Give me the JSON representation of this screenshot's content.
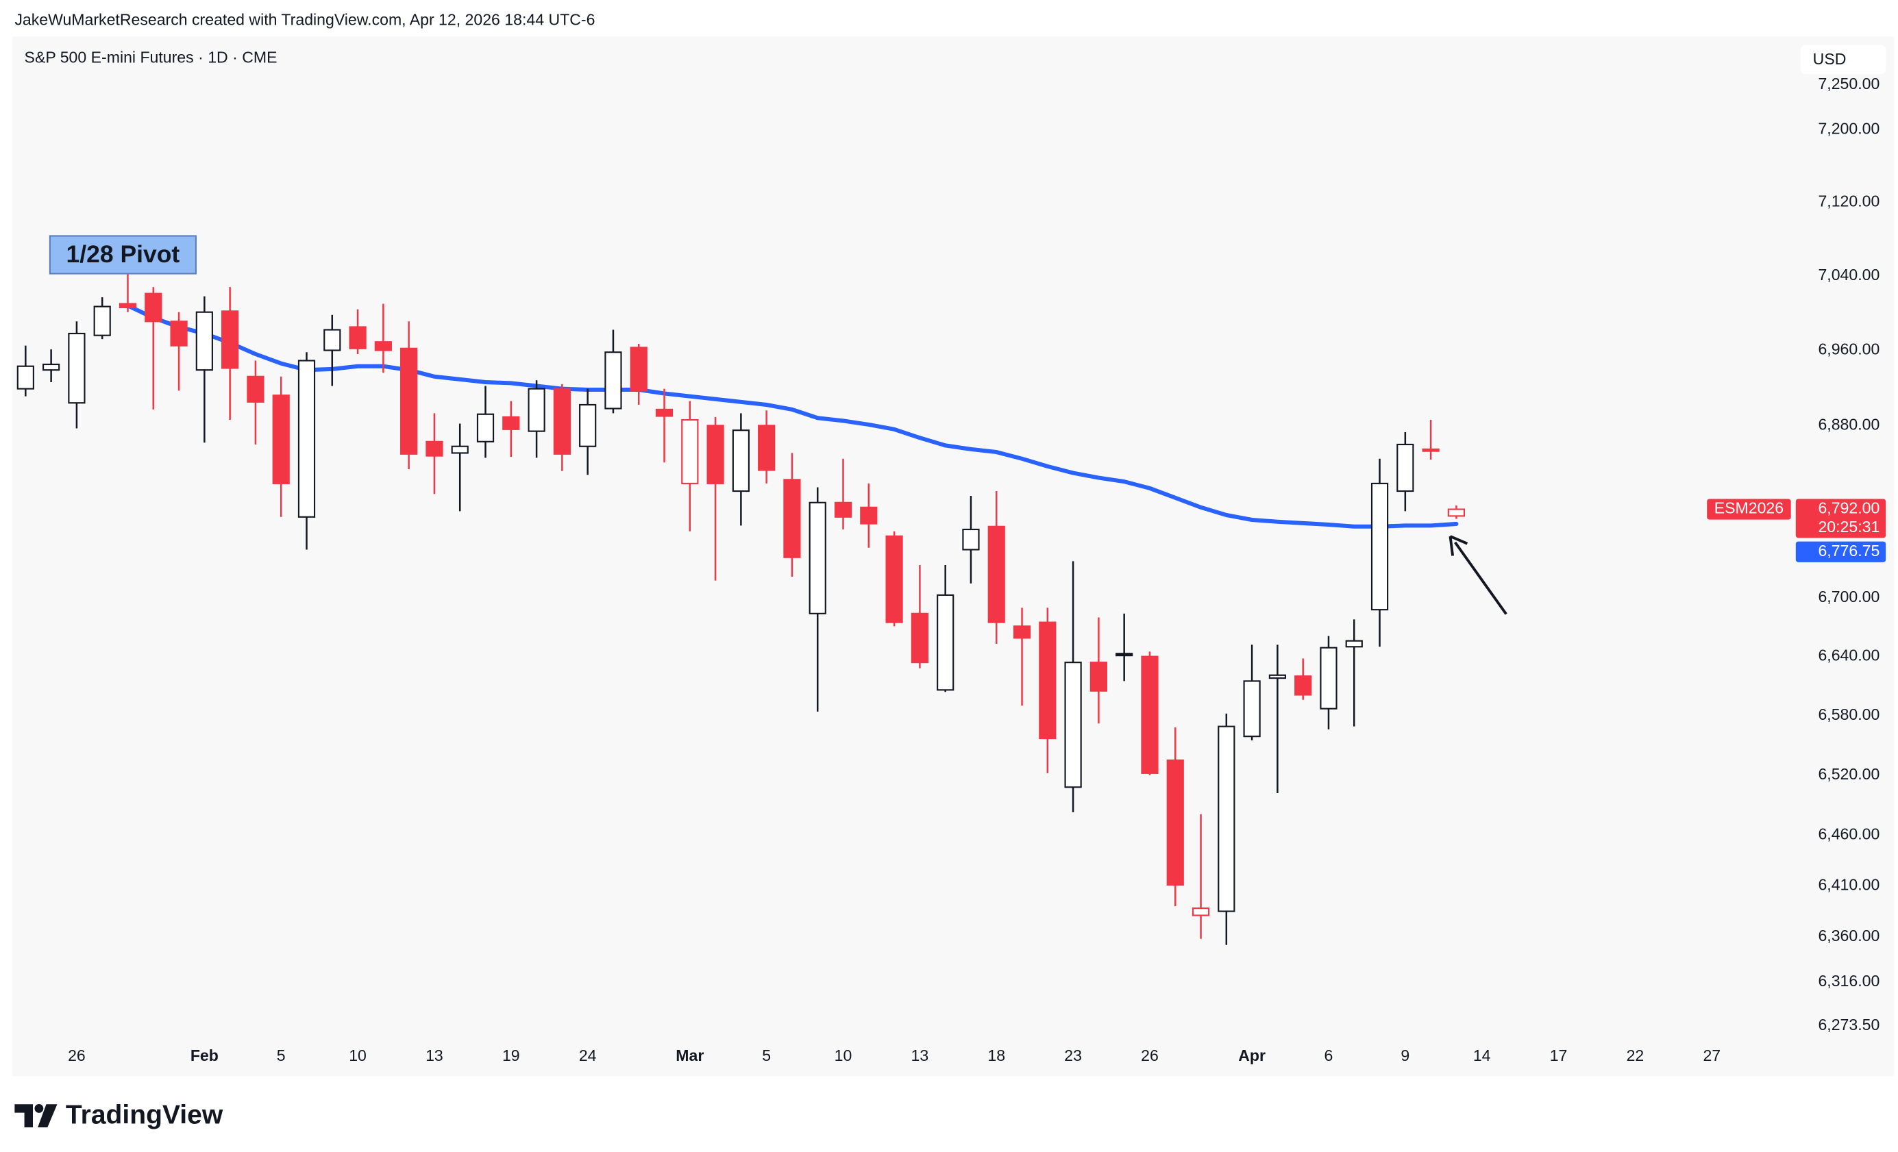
{
  "chart_data": {
    "type": "candlestick",
    "header": "JakeWuMarketResearch created with TradingView.com, Apr 12, 2026 18:44 UTC-6",
    "title": "S&P 500 E-mini Futures · 1D · CME",
    "currency": "USD",
    "brand": "TradingView",
    "log_scale": true,
    "grid": false,
    "up_color": "#131722",
    "down_color": "#f23645",
    "categories": [
      null,
      null,
      "26",
      null,
      null,
      null,
      null,
      "Feb",
      null,
      null,
      "5",
      null,
      null,
      "10",
      null,
      null,
      "13",
      null,
      null,
      "19",
      null,
      null,
      "24",
      null,
      null,
      null,
      "Mar",
      null,
      null,
      "5",
      null,
      null,
      "10",
      null,
      null,
      "13",
      null,
      null,
      "18",
      null,
      null,
      "23",
      null,
      null,
      "26",
      null,
      null,
      null,
      "Apr",
      null,
      null,
      "6",
      null,
      null,
      "9",
      null,
      null,
      "14",
      null,
      null,
      "17",
      null,
      null,
      "22",
      null,
      null,
      "27",
      null,
      null
    ],
    "open": [
      6919,
      6939,
      6904,
      6976,
      7010,
      7021,
      6991,
      6939,
      7002,
      6932,
      6912,
      6784,
      6960,
      6985,
      6969,
      6962,
      6863,
      6851,
      6863,
      6889,
      6874,
      6919,
      6858,
      6898,
      6963,
      6897,
      6819,
      6880,
      6811,
      6880,
      6823,
      6684,
      6799,
      6794,
      6764,
      6684,
      6606,
      6750,
      6774,
      6671,
      6675,
      6508,
      6634,
      6643,
      6640,
      6535,
      6381,
      6385,
      6559,
      6618,
      6620,
      6587,
      6650,
      6688,
      6811,
      6855,
      6785,
      null,
      null,
      null,
      null,
      null,
      null,
      null,
      null,
      null,
      null,
      null,
      null
    ],
    "high": [
      6965,
      6961,
      6991,
      7017,
      7043,
      7028,
      7001,
      7018,
      7028,
      6949,
      6932,
      6958,
      6998,
      7004,
      7010,
      6991,
      6893,
      6882,
      6922,
      6906,
      6928,
      6924,
      6919,
      6982,
      6967,
      6919,
      6906,
      6889,
      6893,
      6896,
      6851,
      6815,
      6845,
      6819,
      6769,
      6734,
      6734,
      6806,
      6811,
      6690,
      6690,
      6738,
      6680,
      6684,
      6645,
      6568,
      6481,
      6582,
      6652,
      6652,
      6638,
      6661,
      6678,
      6845,
      6873,
      6886,
      6796,
      null,
      null,
      null,
      null,
      null,
      null,
      null,
      null,
      null,
      null,
      null,
      null
    ],
    "low": [
      6911,
      6926,
      6877,
      6972,
      7001,
      6897,
      6917,
      6862,
      6886,
      6860,
      6784,
      6750,
      6922,
      6956,
      6936,
      6834,
      6808,
      6790,
      6846,
      6847,
      6846,
      6832,
      6828,
      6893,
      6902,
      6841,
      6769,
      6718,
      6775,
      6819,
      6722,
      6584,
      6771,
      6752,
      6671,
      6628,
      6604,
      6715,
      6653,
      6590,
      6522,
      6483,
      6572,
      6615,
      6520,
      6390,
      6358,
      6352,
      6555,
      6502,
      6596,
      6566,
      6569,
      6650,
      6790,
      6844,
      6782,
      null,
      null,
      null,
      null,
      null,
      null,
      null,
      null,
      null,
      null,
      null,
      null
    ],
    "close": [
      6943,
      6945,
      6978,
      7007,
      7006,
      6991,
      6965,
      7001,
      6941,
      6905,
      6819,
      6949,
      6982,
      6962,
      6960,
      6850,
      6848,
      6858,
      6892,
      6876,
      6919,
      6850,
      6902,
      6958,
      6917,
      6890,
      6886,
      6819,
      6875,
      6833,
      6742,
      6799,
      6784,
      6777,
      6675,
      6634,
      6703,
      6771,
      6675,
      6659,
      6557,
      6634,
      6605,
      6641,
      6522,
      6411,
      6388,
      6569,
      6615,
      6621,
      6601,
      6649,
      6656,
      6819,
      6860,
      6853,
      6792,
      null,
      null,
      null,
      null,
      null,
      null,
      null,
      null,
      null,
      null,
      null,
      null
    ],
    "price_tag": {
      "symbol": "ESM2026",
      "label": "6,792.00",
      "countdown": "20:25:31"
    },
    "ma": {
      "color": "#2962ff",
      "last_label": "6,776.75",
      "values": [
        null,
        null,
        null,
        null,
        7008,
        6995,
        6985,
        6978,
        6968,
        6956,
        6946,
        6939,
        6940,
        6943,
        6943,
        6939,
        6932,
        6929,
        6926,
        6925,
        6922,
        6919,
        6918,
        6918,
        6918,
        6914,
        6911,
        6908,
        6905,
        6902,
        6897,
        6888,
        6885,
        6881,
        6876,
        6867,
        6859,
        6855,
        6852,
        6845,
        6837,
        6830,
        6825,
        6821,
        6814,
        6804,
        6794,
        6786,
        6781,
        6779,
        6777.5,
        6776,
        6774,
        6774,
        6775,
        6775,
        6776.75,
        null,
        null,
        null,
        null,
        null,
        null,
        null,
        null,
        null,
        null,
        null,
        null
      ]
    },
    "annotation": "1/28 Pivot",
    "ylim": [
      6266,
      7304
    ],
    "yticks": [
      {
        "value": 7250,
        "label": "7,250.00"
      },
      {
        "value": 7200,
        "label": "7,200.00"
      },
      {
        "value": 7120,
        "label": "7,120.00"
      },
      {
        "value": 7040,
        "label": "7,040.00"
      },
      {
        "value": 6960,
        "label": "6,960.00"
      },
      {
        "value": 6880,
        "label": "6,880.00"
      },
      {
        "value": 6700,
        "label": "6,700.00"
      },
      {
        "value": 6640,
        "label": "6,640.00"
      },
      {
        "value": 6580,
        "label": "6,580.00"
      },
      {
        "value": 6520,
        "label": "6,520.00"
      },
      {
        "value": 6460,
        "label": "6,460.00"
      },
      {
        "value": 6410,
        "label": "6,410.00"
      },
      {
        "value": 6360,
        "label": "6,360.00"
      },
      {
        "value": 6316,
        "label": "6,316.00"
      },
      {
        "value": 6273.5,
        "label": "6,273.50"
      }
    ]
  }
}
